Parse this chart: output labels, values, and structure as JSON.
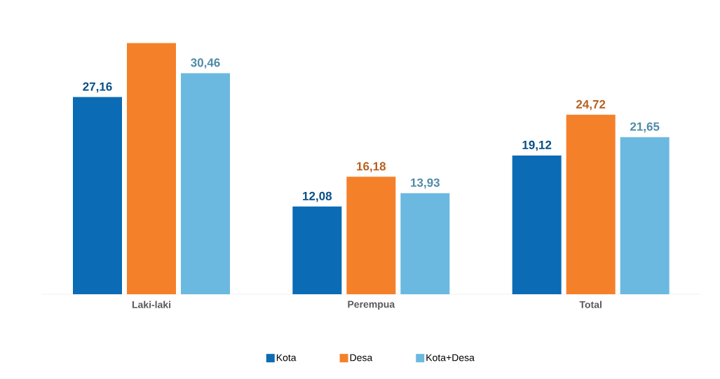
{
  "chart_data": {
    "type": "bar",
    "categories": [
      "Laki-laki",
      "Perempua",
      "Total"
    ],
    "series": [
      {
        "name": "Kota",
        "color": "#0b6bb5",
        "values": [
          27.16,
          12.08,
          19.12
        ],
        "value_labels": [
          "27,16",
          "12,08",
          "19,12"
        ]
      },
      {
        "name": "Desa",
        "color": "#f5802a",
        "values": [
          34.6,
          16.18,
          24.72
        ],
        "value_labels": [
          null,
          "16,18",
          "24,72"
        ]
      },
      {
        "name": "Kota+Desa",
        "color": "#6bb9e0",
        "values": [
          30.46,
          13.93,
          21.65
        ],
        "value_labels": [
          "30,46",
          "13,93",
          "21,65"
        ]
      }
    ],
    "legend": "bottom"
  }
}
